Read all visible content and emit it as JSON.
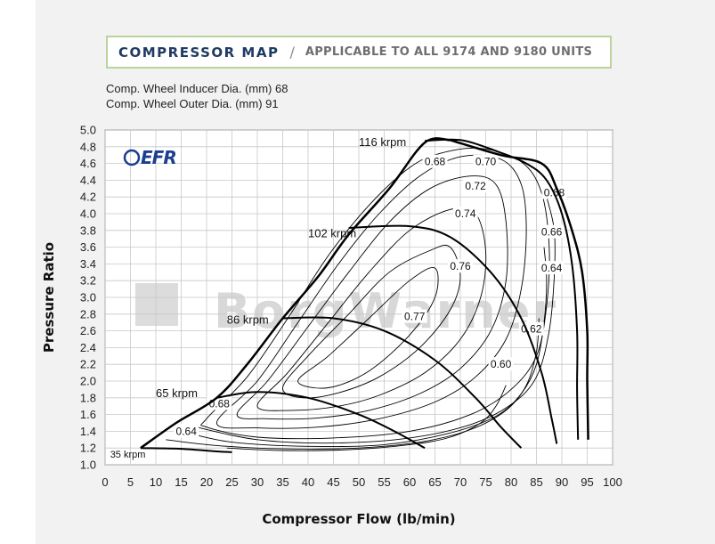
{
  "header": {
    "title": "COMPRESSOR MAP",
    "separator": "/",
    "subtitle": "APPLICABLE TO ALL  9174 AND 9180 UNITS"
  },
  "specs": {
    "inducer": "Comp. Wheel Inducer Dia. (mm) 68",
    "outer": "Comp. Wheel Outer Dia. (mm) 91"
  },
  "logo": {
    "text": "EFR",
    "color": "#1d3f8f"
  },
  "watermark": {
    "text": "BorgWarner"
  },
  "colors": {
    "plot_bg": "#ffffff",
    "panel_bg": "#f2f2f2",
    "line": "#000000",
    "title_border": "#b9d39a",
    "title_text": "#1f3a63"
  },
  "chart_data": {
    "type": "line",
    "title": "COMPRESSOR MAP",
    "xlabel": "Compressor Flow (lb/min)",
    "ylabel": "Pressure Ratio",
    "xlim": [
      0,
      100
    ],
    "ylim": [
      1.0,
      5.0
    ],
    "xticks": [
      "0",
      "5",
      "10",
      "15",
      "20",
      "25",
      "30",
      "35",
      "40",
      "45",
      "50",
      "55",
      "60",
      "65",
      "70",
      "75",
      "80",
      "85",
      "90",
      "95",
      "100"
    ],
    "yticks": [
      "1.0",
      "1.2",
      "1.4",
      "1.6",
      "1.8",
      "2.0",
      "2.2",
      "2.4",
      "2.6",
      "2.8",
      "3.0",
      "3.2",
      "3.4",
      "3.6",
      "3.8",
      "4.0",
      "4.2",
      "4.4",
      "4.6",
      "4.8",
      "5.0"
    ],
    "grid": true,
    "surge_line": [
      [
        7,
        1.2
      ],
      [
        14,
        1.5
      ],
      [
        22,
        1.8
      ],
      [
        28,
        2.2
      ],
      [
        35,
        2.75
      ],
      [
        42,
        3.25
      ],
      [
        48,
        3.75
      ],
      [
        56,
        4.3
      ],
      [
        63,
        4.85
      ],
      [
        68,
        4.88
      ]
    ],
    "choke_line": [
      [
        68,
        4.88
      ],
      [
        78,
        4.7
      ],
      [
        86,
        4.6
      ],
      [
        89,
        4.3
      ],
      [
        92,
        3.8
      ],
      [
        94,
        3.3
      ],
      [
        95,
        2.6
      ],
      [
        95,
        2.0
      ],
      [
        95.2,
        1.3
      ]
    ],
    "speed_lines": [
      {
        "name": "35 krpm",
        "points": [
          [
            7,
            1.2
          ],
          [
            15,
            1.19
          ],
          [
            22,
            1.16
          ],
          [
            25,
            1.15
          ]
        ]
      },
      {
        "name": "65 krpm",
        "points": [
          [
            22,
            1.8
          ],
          [
            30,
            1.87
          ],
          [
            40,
            1.8
          ],
          [
            50,
            1.6
          ],
          [
            57,
            1.4
          ],
          [
            63,
            1.2
          ]
        ]
      },
      {
        "name": "86 krpm",
        "points": [
          [
            35,
            2.75
          ],
          [
            45,
            2.75
          ],
          [
            55,
            2.6
          ],
          [
            65,
            2.25
          ],
          [
            73,
            1.8
          ],
          [
            78,
            1.45
          ],
          [
            82,
            1.2
          ]
        ]
      },
      {
        "name": "102 krpm",
        "points": [
          [
            48,
            3.83
          ],
          [
            60,
            3.85
          ],
          [
            68,
            3.72
          ],
          [
            76,
            3.3
          ],
          [
            82,
            2.75
          ],
          [
            86,
            2.1
          ],
          [
            88,
            1.55
          ],
          [
            89,
            1.25
          ]
        ]
      },
      {
        "name": "116 krpm",
        "points": [
          [
            63,
            4.87
          ],
          [
            70,
            4.88
          ],
          [
            77,
            4.75
          ],
          [
            83,
            4.6
          ],
          [
            87,
            4.4
          ],
          [
            90,
            4.0
          ],
          [
            92,
            3.4
          ],
          [
            93,
            2.6
          ],
          [
            93,
            1.9
          ],
          [
            93.2,
            1.3
          ]
        ]
      }
    ],
    "efficiency_islands": [
      {
        "label": "0.77",
        "label_at": [
          61,
          2.77
        ],
        "points": [
          [
            38,
            2.0
          ],
          [
            44,
            2.3
          ],
          [
            52,
            2.75
          ],
          [
            60,
            3.2
          ],
          [
            65,
            3.35
          ],
          [
            65,
            3.0
          ],
          [
            60,
            2.55
          ],
          [
            52,
            2.12
          ],
          [
            44,
            1.92
          ]
        ]
      },
      {
        "label": "0.76",
        "label_at": [
          70,
          3.37
        ],
        "points": [
          [
            35,
            1.92
          ],
          [
            40,
            2.3
          ],
          [
            48,
            2.8
          ],
          [
            56,
            3.3
          ],
          [
            64,
            3.56
          ],
          [
            68,
            3.6
          ],
          [
            70,
            3.25
          ],
          [
            68,
            2.85
          ],
          [
            62,
            2.4
          ],
          [
            54,
            2.05
          ],
          [
            46,
            1.86
          ],
          [
            39,
            1.8
          ]
        ]
      },
      {
        "label": "0.74",
        "label_at": [
          71,
          4.0
        ],
        "points": [
          [
            30,
            1.7
          ],
          [
            36,
            2.1
          ],
          [
            44,
            2.7
          ],
          [
            52,
            3.3
          ],
          [
            60,
            3.8
          ],
          [
            68,
            4.05
          ],
          [
            73,
            4.0
          ],
          [
            75,
            3.55
          ],
          [
            74,
            3.0
          ],
          [
            70,
            2.5
          ],
          [
            63,
            2.1
          ],
          [
            54,
            1.83
          ],
          [
            46,
            1.7
          ],
          [
            37,
            1.65
          ]
        ]
      },
      {
        "label": "0.72",
        "label_at": [
          73,
          4.33
        ],
        "points": [
          [
            26,
            1.6
          ],
          [
            32,
            2.0
          ],
          [
            40,
            2.65
          ],
          [
            48,
            3.3
          ],
          [
            56,
            3.9
          ],
          [
            64,
            4.3
          ],
          [
            72,
            4.45
          ],
          [
            77,
            4.35
          ],
          [
            79,
            3.9
          ],
          [
            79,
            3.2
          ],
          [
            76,
            2.6
          ],
          [
            70,
            2.15
          ],
          [
            62,
            1.85
          ],
          [
            52,
            1.65
          ],
          [
            42,
            1.56
          ],
          [
            32,
            1.55
          ]
        ]
      },
      {
        "label": "0.70",
        "label_at": [
          75,
          4.62
        ],
        "points": [
          [
            22,
            1.5
          ],
          [
            30,
            2.0
          ],
          [
            38,
            2.7
          ],
          [
            46,
            3.4
          ],
          [
            54,
            4.0
          ],
          [
            62,
            4.45
          ],
          [
            70,
            4.68
          ],
          [
            78,
            4.65
          ],
          [
            82,
            4.35
          ],
          [
            83,
            3.8
          ],
          [
            82,
            3.1
          ],
          [
            79,
            2.5
          ],
          [
            73,
            2.05
          ],
          [
            65,
            1.75
          ],
          [
            54,
            1.55
          ],
          [
            42,
            1.45
          ],
          [
            30,
            1.44
          ]
        ]
      },
      {
        "label": "0.68",
        "label_at": [
          65,
          4.62
        ],
        "points": [
          [
            20,
            1.55
          ],
          [
            28,
            2.05
          ],
          [
            36,
            2.75
          ],
          [
            44,
            3.5
          ],
          [
            52,
            4.1
          ],
          [
            60,
            4.55
          ],
          [
            66,
            4.72
          ],
          [
            74,
            4.78
          ],
          [
            82,
            4.62
          ],
          [
            86,
            4.25
          ],
          [
            87.5,
            3.6
          ],
          [
            87,
            2.9
          ],
          [
            85,
            2.3
          ],
          [
            80,
            1.9
          ],
          [
            72,
            1.6
          ],
          [
            60,
            1.4
          ],
          [
            45,
            1.32
          ],
          [
            30,
            1.33
          ],
          [
            20,
            1.45
          ]
        ]
      },
      {
        "label": "0.66",
        "label_at": [
          88,
          3.78
        ],
        "points": [
          [
            18,
            1.45
          ],
          [
            30,
            1.3
          ],
          [
            45,
            1.26
          ],
          [
            60,
            1.32
          ],
          [
            72,
            1.48
          ],
          [
            80,
            1.72
          ],
          [
            85,
            2.05
          ],
          [
            87.5,
            2.6
          ],
          [
            88.5,
            3.25
          ],
          [
            88.5,
            3.8
          ],
          [
            87,
            4.2
          ]
        ]
      },
      {
        "label": "0.64",
        "label_at": [
          88,
          3.35
        ],
        "points": [
          [
            15,
            1.4
          ],
          [
            25,
            1.27
          ],
          [
            40,
            1.22
          ],
          [
            55,
            1.24
          ],
          [
            68,
            1.38
          ],
          [
            77,
            1.58
          ],
          [
            82,
            1.85
          ],
          [
            85,
            2.2
          ],
          [
            86.5,
            2.7
          ],
          [
            87,
            3.2
          ],
          [
            86.5,
            3.6
          ]
        ]
      },
      {
        "label": "0.62",
        "label_at": [
          84,
          2.62
        ],
        "points": [
          [
            12,
            1.3
          ],
          [
            22,
            1.23
          ],
          [
            35,
            1.19
          ],
          [
            50,
            1.2
          ],
          [
            62,
            1.27
          ],
          [
            72,
            1.42
          ],
          [
            79,
            1.65
          ],
          [
            83,
            1.95
          ],
          [
            85,
            2.35
          ],
          [
            85.5,
            2.75
          ]
        ]
      },
      {
        "label": "0.60",
        "label_at": [
          78,
          2.2
        ],
        "points": [
          [
            24,
            1.2
          ],
          [
            35,
            1.17
          ],
          [
            48,
            1.18
          ],
          [
            60,
            1.24
          ],
          [
            68,
            1.33
          ],
          [
            74,
            1.5
          ],
          [
            77,
            1.7
          ],
          [
            79,
            1.95
          ]
        ]
      }
    ],
    "island_labels_extra": [
      {
        "label": "0.68",
        "at": [
          22.5,
          1.73
        ]
      },
      {
        "label": "0.64",
        "at": [
          16,
          1.4
        ]
      },
      {
        "label": "0.68",
        "at": [
          88.5,
          4.25
        ]
      }
    ]
  }
}
